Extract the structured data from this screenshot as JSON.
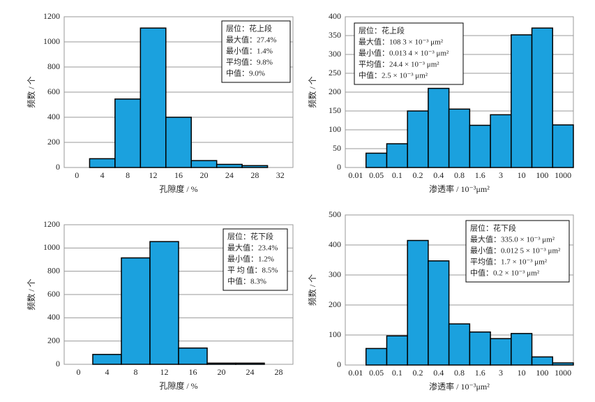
{
  "chart_data": [
    {
      "type": "histogram",
      "bins": [
        2,
        6,
        10,
        14,
        18,
        22,
        26,
        30
      ],
      "values": [
        70,
        545,
        1110,
        400,
        55,
        25,
        15
      ],
      "xlim": [
        -2,
        34
      ],
      "xticks": [
        0,
        4,
        8,
        12,
        16,
        20,
        24,
        28,
        32
      ],
      "ylim": [
        0,
        1200
      ],
      "yticks": [
        0,
        200,
        400,
        600,
        800,
        1000,
        1200
      ],
      "xlabel": "孔隙度 / %",
      "ylabel": "频数 / 个",
      "color": "#1ba1de",
      "grid": true,
      "annotation": [
        "层位：花上段",
        "最大值：27.4%",
        "最小值：1.4%",
        "平均值：9.8%",
        "中值：9.0%"
      ]
    },
    {
      "type": "bar",
      "categories": [
        "0.01",
        "0.05",
        "0.1",
        "0.2",
        "0.4",
        "0.8",
        "1.6",
        "3",
        "10",
        "100",
        "1000"
      ],
      "values": [
        0,
        38,
        63,
        150,
        210,
        155,
        112,
        140,
        352,
        370,
        113
      ],
      "ylim": [
        0,
        400
      ],
      "yticks": [
        0,
        50,
        100,
        150,
        200,
        250,
        300,
        350,
        400
      ],
      "xlabel": "渗透率 / 10⁻³μm²",
      "ylabel": "频数 / 个",
      "color": "#1ba1de",
      "grid": true,
      "annotation": [
        "层位：花上段",
        "最大值：108 3 × 10⁻³ μm²",
        "最小值：0.013 4 × 10⁻³ μm²",
        "平均值：24.4 × 10⁻³ μm²",
        "中值：2.5 × 10⁻³ μm²"
      ]
    },
    {
      "type": "histogram",
      "bins": [
        2,
        6,
        10,
        14,
        18,
        22,
        26
      ],
      "values": [
        85,
        915,
        1055,
        140,
        10,
        10
      ],
      "xlim": [
        -2,
        30
      ],
      "xticks": [
        0,
        4,
        8,
        12,
        16,
        20,
        24,
        28
      ],
      "ylim": [
        0,
        1200
      ],
      "yticks": [
        0,
        200,
        400,
        600,
        800,
        1000,
        1200
      ],
      "xlabel": "孔隙度 / %",
      "ylabel": "频数 / 个",
      "color": "#1ba1de",
      "grid": true,
      "annotation": [
        "层位：花下段",
        "最大值：23.4%",
        "最小值：1.2%",
        "平 均 值：8.5%",
        "中值：8.3%"
      ]
    },
    {
      "type": "bar",
      "categories": [
        "0.01",
        "0.05",
        "0.1",
        "0.2",
        "0.4",
        "0.8",
        "1.6",
        "3",
        "10",
        "100",
        "1000"
      ],
      "values": [
        0,
        55,
        97,
        415,
        347,
        137,
        110,
        88,
        105,
        27,
        7
      ],
      "ylim": [
        0,
        500
      ],
      "yticks": [
        0,
        100,
        200,
        300,
        400,
        500
      ],
      "xlabel": "渗透率 / 10⁻³μm²",
      "ylabel": "频数 / 个",
      "color": "#1ba1de",
      "grid": true,
      "annotation": [
        "层位：花下段",
        "最大值：335.0 × 10⁻³ μm²",
        "最小值：0.012 5 × 10⁻³ μm²",
        "平均值：1.7 × 10⁻³ μm²",
        "中值：0.2 × 10⁻³ μm²"
      ]
    }
  ]
}
